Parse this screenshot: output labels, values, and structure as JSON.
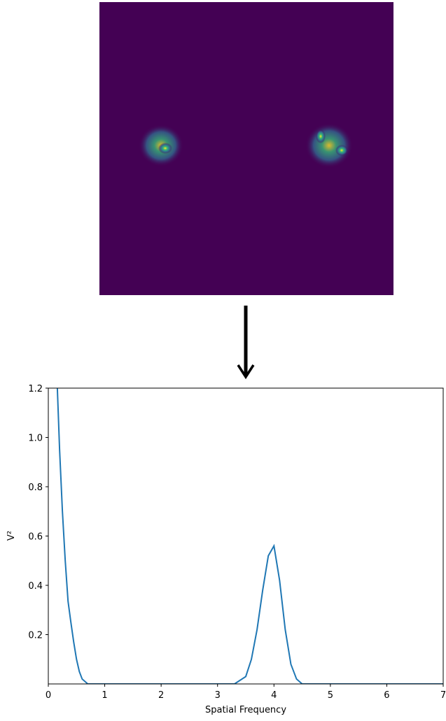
{
  "chart_data": {
    "type": "line",
    "xlabel": "Spatial Frequency",
    "ylabel": "V²",
    "x": [
      0.16,
      0.2,
      0.25,
      0.3,
      0.35,
      0.4,
      0.45,
      0.5,
      0.55,
      0.6,
      0.7,
      1,
      2,
      3,
      3.3,
      3.5,
      3.6,
      3.7,
      3.8,
      3.9,
      4.0,
      4.1,
      4.2,
      4.3,
      4.4,
      4.5,
      5,
      6,
      7
    ],
    "series": [
      {
        "color": "#1f77b4",
        "values": [
          1.2,
          0.95,
          0.7,
          0.5,
          0.335,
          0.25,
          0.17,
          0.1,
          0.05,
          0.02,
          0,
          0,
          0,
          0,
          0,
          0.03,
          0.1,
          0.22,
          0.38,
          0.52,
          0.56,
          0.42,
          0.22,
          0.08,
          0.02,
          0,
          0,
          0,
          0
        ]
      }
    ],
    "xlim": [
      0,
      7
    ],
    "ylim": [
      0,
      1.2
    ],
    "xticks": [
      0,
      1,
      2,
      3,
      4,
      5,
      6,
      7
    ],
    "yticks": [
      0.2,
      0.4,
      0.6,
      0.8,
      {
        "value": 1,
        "label": "1.0"
      },
      1.2
    ]
  }
}
